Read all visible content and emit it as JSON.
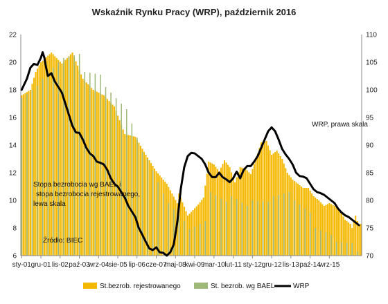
{
  "chart_data": {
    "type": "bar",
    "title": "Wskaźnik Rynku Pracy (WRP), październik 2016",
    "x_tick_labels": [
      "sty-01",
      "gru-01",
      "lis-02",
      "paź-03",
      "wrz-04",
      "sie-05",
      "lip-06",
      "cze-07",
      "maj-08",
      "kwi-09",
      "mar-10",
      "lut-11",
      "sty-12",
      "gru-12",
      "lis-13",
      "paź-14",
      "wrz-15"
    ],
    "y_left": {
      "range": [
        6,
        22
      ],
      "ticks": [
        "6",
        "8",
        "10",
        "12",
        "14",
        "16",
        "18",
        "20",
        "22"
      ]
    },
    "y_right": {
      "range": [
        70,
        110
      ],
      "ticks": [
        "70",
        "75",
        "80",
        "85",
        "90",
        "95",
        "100",
        "105",
        "110"
      ]
    },
    "series": [
      {
        "name": "St.bezrob. rejestrowanego",
        "color": "#f5b800",
        "axis": "left",
        "points": [
          [
            0,
            17.6
          ],
          [
            5,
            18.0
          ],
          [
            8,
            19.3
          ],
          [
            11,
            20.0
          ],
          [
            17,
            20.7
          ],
          [
            23,
            19.9
          ],
          [
            29,
            20.7
          ],
          [
            35,
            18.8
          ],
          [
            41,
            18.0
          ],
          [
            47,
            17.6
          ],
          [
            53,
            16.8
          ],
          [
            59,
            14.8
          ],
          [
            65,
            14.6
          ],
          [
            71,
            13.3
          ],
          [
            77,
            12.1
          ],
          [
            83,
            11.2
          ],
          [
            89,
            9.8
          ],
          [
            90,
            10.5
          ],
          [
            95,
            8.9
          ],
          [
            101,
            9.7
          ],
          [
            104,
            10.2
          ],
          [
            107,
            12.8
          ],
          [
            110,
            12.6
          ],
          [
            113,
            12.1
          ],
          [
            116,
            12.9
          ],
          [
            119,
            12.4
          ],
          [
            122,
            11.3
          ],
          [
            125,
            12.4
          ],
          [
            128,
            12.3
          ],
          [
            131,
            11.9
          ],
          [
            134,
            13.0
          ],
          [
            137,
            14.2
          ],
          [
            140,
            14.3
          ],
          [
            143,
            13.3
          ],
          [
            146,
            13.6
          ],
          [
            149,
            13.0
          ],
          [
            152,
            12.0
          ],
          [
            155,
            11.5
          ],
          [
            158,
            11.2
          ],
          [
            161,
            10.9
          ],
          [
            164,
            10.9
          ],
          [
            167,
            10.3
          ],
          [
            170,
            10.0
          ],
          [
            173,
            9.6
          ],
          [
            176,
            9.8
          ],
          [
            179,
            9.6
          ],
          [
            182,
            9.3
          ],
          [
            185,
            8.6
          ],
          [
            188,
            8.3
          ],
          [
            189,
            8.0
          ],
          [
            190,
            8.5
          ],
          [
            191,
            8.9
          ],
          [
            192,
            8.5
          ],
          [
            193,
            8.2
          ],
          [
            194,
            8.3
          ]
        ]
      },
      {
        "name": "St. bezrob. wg BAEL",
        "color": "#9db879",
        "axis": "left",
        "quarterly": true,
        "points": [
          [
            0,
            17.4
          ],
          [
            9,
            18.3
          ],
          [
            12,
            18.8
          ],
          [
            21,
            20.0
          ],
          [
            24,
            20.3
          ],
          [
            33,
            20.6
          ],
          [
            36,
            19.3
          ],
          [
            45,
            19.1
          ],
          [
            48,
            18.2
          ],
          [
            57,
            17.0
          ],
          [
            60,
            16.6
          ],
          [
            69,
            13.5
          ],
          [
            72,
            13.0
          ],
          [
            81,
            10.5
          ],
          [
            84,
            9.8
          ],
          [
            93,
            8.5
          ],
          [
            96,
            7.9
          ],
          [
            105,
            8.5
          ],
          [
            108,
            10.6
          ],
          [
            117,
            9.9
          ],
          [
            120,
            10.3
          ],
          [
            129,
            9.6
          ],
          [
            132,
            10.0
          ],
          [
            141,
            9.9
          ],
          [
            144,
            10.3
          ],
          [
            153,
            10.6
          ],
          [
            156,
            10.0
          ],
          [
            165,
            9.1
          ],
          [
            168,
            8.0
          ],
          [
            177,
            7.5
          ],
          [
            180,
            7.0
          ],
          [
            189,
            6.9
          ],
          [
            192,
            6.3
          ]
        ]
      },
      {
        "name": "WRP",
        "color": "#000000",
        "axis": "right",
        "type": "line",
        "points": [
          [
            0,
            100
          ],
          [
            3,
            102
          ],
          [
            5,
            104
          ],
          [
            7,
            104.7
          ],
          [
            9,
            104.5
          ],
          [
            11,
            105.8
          ],
          [
            12,
            106.8
          ],
          [
            13,
            105.8
          ],
          [
            14,
            104
          ],
          [
            15,
            102.5
          ],
          [
            17,
            103
          ],
          [
            19,
            101.5
          ],
          [
            21,
            100.5
          ],
          [
            23,
            99.5
          ],
          [
            25,
            97.5
          ],
          [
            27,
            95.5
          ],
          [
            29,
            93.5
          ],
          [
            31,
            92.3
          ],
          [
            33,
            92.2
          ],
          [
            35,
            91
          ],
          [
            37,
            89.5
          ],
          [
            39,
            88.5
          ],
          [
            41,
            88
          ],
          [
            43,
            87
          ],
          [
            45,
            86.8
          ],
          [
            47,
            86.5
          ],
          [
            49,
            85.5
          ],
          [
            51,
            84
          ],
          [
            53,
            83
          ],
          [
            55,
            82.5
          ],
          [
            57,
            81.5
          ],
          [
            59,
            80.5
          ],
          [
            61,
            79
          ],
          [
            63,
            78
          ],
          [
            65,
            77
          ],
          [
            67,
            75
          ],
          [
            69,
            73.8
          ],
          [
            71,
            72.5
          ],
          [
            73,
            71.3
          ],
          [
            75,
            71
          ],
          [
            77,
            71.5
          ],
          [
            79,
            70.6
          ],
          [
            81,
            70.5
          ],
          [
            83,
            70
          ],
          [
            85,
            70.6
          ],
          [
            87,
            72
          ],
          [
            89,
            76
          ],
          [
            91,
            82
          ],
          [
            93,
            86
          ],
          [
            95,
            88
          ],
          [
            97,
            88.6
          ],
          [
            99,
            88.5
          ],
          [
            101,
            88
          ],
          [
            103,
            87.5
          ],
          [
            105,
            86.5
          ],
          [
            107,
            85
          ],
          [
            109,
            84.2
          ],
          [
            111,
            84.2
          ],
          [
            113,
            85
          ],
          [
            115,
            84.2
          ],
          [
            117,
            83.8
          ],
          [
            119,
            83.3
          ],
          [
            121,
            84
          ],
          [
            123,
            85.2
          ],
          [
            125,
            84
          ],
          [
            127,
            85.5
          ],
          [
            129,
            86.2
          ],
          [
            131,
            86.2
          ],
          [
            133,
            87
          ],
          [
            135,
            88
          ],
          [
            137,
            89.5
          ],
          [
            139,
            91
          ],
          [
            141,
            92.5
          ],
          [
            143,
            93.2
          ],
          [
            145,
            92.5
          ],
          [
            147,
            91
          ],
          [
            149,
            89.3
          ],
          [
            151,
            88.3
          ],
          [
            153,
            87.5
          ],
          [
            155,
            86.5
          ],
          [
            157,
            85
          ],
          [
            159,
            84.4
          ],
          [
            161,
            84.3
          ],
          [
            163,
            84
          ],
          [
            165,
            83
          ],
          [
            167,
            82
          ],
          [
            169,
            81.5
          ],
          [
            171,
            81.3
          ],
          [
            173,
            81
          ],
          [
            175,
            80.5
          ],
          [
            177,
            80
          ],
          [
            179,
            79.5
          ],
          [
            181,
            78.5
          ],
          [
            183,
            77.8
          ],
          [
            185,
            77.3
          ],
          [
            187,
            77
          ],
          [
            189,
            76.5
          ],
          [
            191,
            76
          ],
          [
            193,
            75.5
          ]
        ]
      }
    ],
    "annotations": {
      "left_axis_note": [
        "Stopa bezrobocia wg BAEL i",
        "stopa bezrobocia rejestrowanego,",
        "lewa skala"
      ],
      "right_axis_note": "WRP, prawa skala",
      "source": "Źródło: BIEC"
    },
    "legend_position": "bottom",
    "grid": false
  }
}
